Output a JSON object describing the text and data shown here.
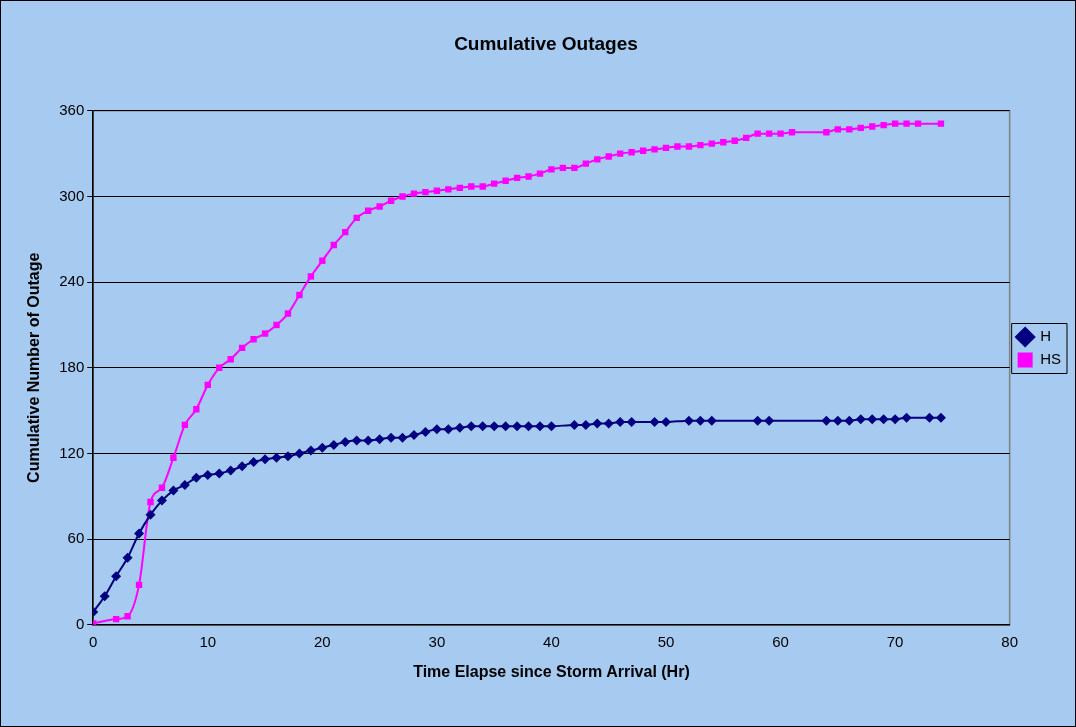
{
  "chart_data": {
    "type": "line",
    "title": "Cumulative Outages",
    "xlabel": "Time Elapse since Storm Arrival (Hr)",
    "ylabel": "Cumulative Number of Outage",
    "xlim": [
      0,
      80
    ],
    "xticks": [
      0,
      10,
      20,
      30,
      40,
      50,
      60,
      70,
      80
    ],
    "ylim": [
      0,
      360
    ],
    "yticks": [
      0,
      60,
      120,
      180,
      240,
      300,
      360
    ],
    "grid": "y",
    "legend": "right",
    "series": [
      {
        "name": "H",
        "color": "#000080",
        "marker": "diamond",
        "x": [
          0,
          1,
          2,
          3,
          4,
          5,
          6,
          7,
          8,
          9,
          10,
          11,
          12,
          13,
          14,
          15,
          16,
          17,
          18,
          19,
          20,
          21,
          22,
          23,
          24,
          25,
          26,
          27,
          28,
          29,
          30,
          31,
          32,
          33,
          34,
          35,
          36,
          37,
          38,
          39,
          40,
          42,
          43,
          44,
          45,
          46,
          47,
          49,
          50,
          52,
          53,
          54,
          58,
          59,
          64,
          65,
          66,
          67,
          68,
          69,
          70,
          71,
          73,
          74
        ],
        "values": [
          9,
          20,
          34,
          47,
          64,
          77,
          87,
          94,
          98,
          103,
          105,
          106,
          108,
          111,
          114,
          116,
          117,
          118,
          120,
          122,
          124,
          126,
          128,
          129,
          129,
          130,
          131,
          131,
          133,
          135,
          137,
          137,
          138,
          139,
          139,
          139,
          139,
          139,
          139,
          139,
          139,
          140,
          140,
          141,
          141,
          142,
          142,
          142,
          142,
          143,
          143,
          143,
          143,
          143,
          143,
          143,
          143,
          144,
          144,
          144,
          144,
          145,
          145,
          145
        ]
      },
      {
        "name": "HS",
        "color": "#ff00ff",
        "marker": "square",
        "x": [
          0,
          2,
          3,
          4,
          5,
          6,
          7,
          8,
          9,
          10,
          11,
          12,
          13,
          14,
          15,
          16,
          17,
          18,
          19,
          20,
          21,
          22,
          23,
          24,
          25,
          26,
          27,
          28,
          29,
          30,
          31,
          32,
          33,
          34,
          35,
          36,
          37,
          38,
          39,
          40,
          41,
          42,
          43,
          44,
          45,
          46,
          47,
          48,
          49,
          50,
          51,
          52,
          53,
          54,
          55,
          56,
          57,
          58,
          59,
          60,
          61,
          64,
          65,
          66,
          67,
          68,
          69,
          70,
          71,
          72,
          74
        ],
        "values": [
          1,
          4,
          6,
          28,
          86,
          96,
          117,
          140,
          151,
          168,
          180,
          186,
          194,
          200,
          204,
          210,
          218,
          231,
          244,
          255,
          266,
          275,
          285,
          290,
          293,
          297,
          300,
          302,
          303,
          304,
          305,
          306,
          307,
          307,
          309,
          311,
          313,
          314,
          316,
          319,
          320,
          320,
          323,
          326,
          328,
          330,
          331,
          332,
          333,
          334,
          335,
          335,
          336,
          337,
          338,
          339,
          341,
          344,
          344,
          344,
          345,
          345,
          347,
          347,
          348,
          349,
          350,
          351,
          351,
          351,
          351
        ]
      }
    ]
  }
}
